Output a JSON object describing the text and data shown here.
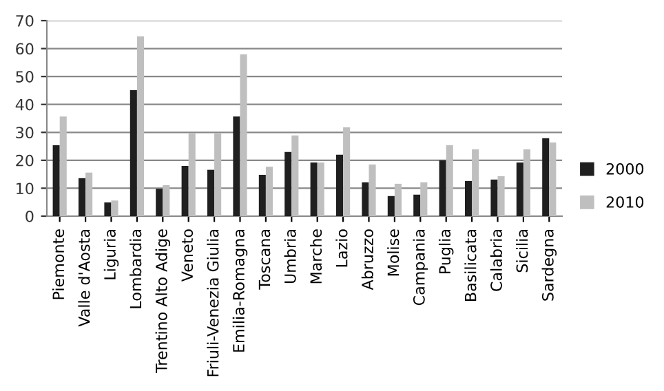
{
  "chart_data": {
    "type": "bar",
    "categories": [
      "Piemonte",
      "Valle d'Aosta",
      "Liguria",
      "Lombardia",
      "Trentino Alto Adige",
      "Veneto",
      "Friuli-Venezia Giulia",
      "Emilia-Romagna",
      "Toscana",
      "Umbria",
      "Marche",
      "Lazio",
      "Abruzzo",
      "Molise",
      "Campania",
      "Puglia",
      "Basilicata",
      "Calabria",
      "Sicilia",
      "Sardegna"
    ],
    "series": [
      {
        "name": "2000",
        "color": "#1f1f1f",
        "values": [
          25.4,
          13.6,
          4.9,
          45.1,
          9.8,
          18.0,
          16.6,
          35.7,
          14.8,
          23.0,
          19.2,
          22.0,
          12.1,
          7.2,
          7.7,
          20.0,
          12.6,
          13.1,
          19.2,
          27.9
        ]
      },
      {
        "name": "2010",
        "color": "#bfbfbf",
        "values": [
          35.7,
          15.6,
          5.6,
          64.4,
          11.1,
          29.7,
          29.7,
          57.9,
          17.7,
          28.9,
          19.2,
          31.8,
          18.5,
          11.6,
          12.1,
          25.4,
          23.9,
          14.3,
          23.9,
          26.4
        ]
      }
    ],
    "ylim": [
      0,
      70
    ],
    "yticks": [
      0,
      10,
      20,
      30,
      40,
      50,
      60,
      70
    ],
    "grid": "y",
    "legend": "right"
  }
}
